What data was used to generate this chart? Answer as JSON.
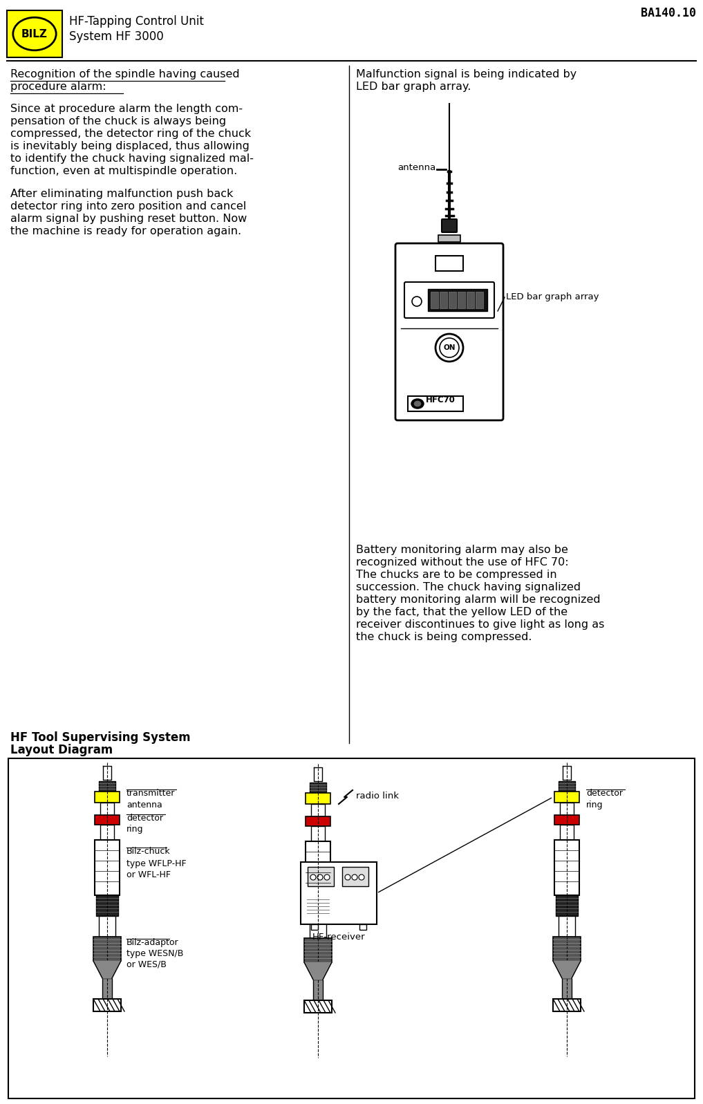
{
  "page_title": "BA140.10",
  "logo_text": "BILZ",
  "header_line1": "HF-Tapping Control Unit",
  "header_line2": "System HF 3000",
  "left_col_title_line1": "Recognition of the spindle having caused",
  "left_col_title_line2": "procedure alarm:",
  "left_col_para1_lines": [
    "Since at procedure alarm the length com-",
    "pensation of the chuck is always being",
    "compressed, the detector ring of the chuck",
    "is inevitably being displaced, thus allowing",
    "to identify the chuck having signalized mal-",
    "function, even at multispindle operation."
  ],
  "left_col_para2_lines": [
    "After eliminating malfunction push back",
    "detector ring into zero position and cancel",
    "alarm signal by pushing reset button. Now",
    "the machine is ready for operation again."
  ],
  "right_col_text1_line1": "Malfunction signal is being indicated by",
  "right_col_text1_line2": "LED bar graph array.",
  "antenna_label": "antenna",
  "led_label": "LED bar graph array",
  "on_label": "ON",
  "hfc70_label": "HFC70",
  "right_col_text2_lines": [
    "Battery monitoring alarm may also be",
    "recognized without the use of HFC 70:",
    "The chucks are to be compressed in",
    "succession. The chuck having signalized",
    "battery monitoring alarm will be recognized",
    "by the fact, that the yellow LED of the",
    "receiver discontinues to give light as long as",
    "the chuck is being compressed."
  ],
  "diagram_title1": "HF Tool Supervising System",
  "diagram_title2": "Layout Diagram",
  "transmitter_antenna_label_line1": "transmitter",
  "transmitter_antenna_label_line2": "antenna",
  "detector_ring_label_line1": "detector",
  "detector_ring_label_line2": "ring",
  "bilz_chuck_label_line1": "Bilz-chuck",
  "bilz_chuck_label_line2": "type WFLP-HF",
  "bilz_chuck_label_line3": "or WFL-HF",
  "bilz_adaptor_label_line1": "Bilz-adaptor",
  "bilz_adaptor_label_line2": "type WESN/B",
  "bilz_adaptor_label_line3": "or WES/B",
  "radio_link_label": "radio link",
  "hf_receiver_label": "HF-receiver",
  "bg_color": "#ffffff",
  "text_color": "#000000",
  "yellow_color": "#ffff00",
  "red_color": "#cc0000",
  "dark_gray": "#444444",
  "med_gray": "#888888",
  "light_gray": "#cccccc",
  "border_color": "#000000"
}
